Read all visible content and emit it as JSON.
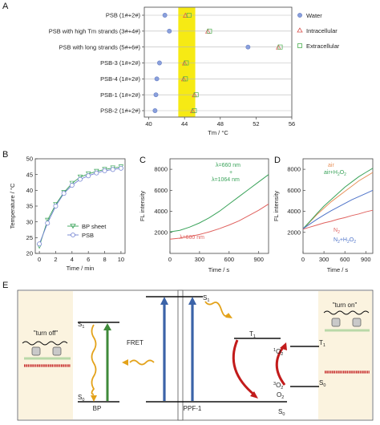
{
  "panels": {
    "a": "A",
    "b": "B",
    "c": "C",
    "d": "D",
    "e": "E"
  },
  "chart_data": [
    {
      "id": "A",
      "type": "scatter",
      "xlabel": "Tm / °C",
      "xlim": [
        39.5,
        56
      ],
      "xticks": [
        40,
        44,
        48,
        52,
        56
      ],
      "highlight_band": [
        43.3,
        45.2
      ],
      "categories": [
        "PSB (1#+2#)",
        "PSB with high Tm strands (3#+4#)",
        "PSB with long strands (5#+6#)",
        "PSB-3 (1#+2#)",
        "PSB-4 (1#+2#)",
        "PSB-1 (1#+2#)",
        "PSB-2 (1#+2#)"
      ],
      "series": [
        {
          "name": "Water",
          "marker": "circle",
          "color": "#6f86c9",
          "values": [
            41.8,
            42.3,
            51.1,
            41.2,
            40.9,
            40.8,
            40.7
          ]
        },
        {
          "name": "Intracellular",
          "marker": "triangle",
          "color": "#d9534f",
          "values": [
            44.1,
            46.6,
            54.5,
            44.0,
            43.9,
            45.1,
            44.9
          ]
        },
        {
          "name": "Extracellular",
          "marker": "square",
          "color": "#4caf50",
          "values": [
            44.5,
            46.8,
            54.7,
            44.2,
            44.1,
            45.3,
            45.1
          ]
        }
      ]
    },
    {
      "id": "B",
      "type": "line",
      "xlabel": "Time / min",
      "ylabel": "Temperature / °C",
      "xlim": [
        -0.5,
        10.5
      ],
      "ylim": [
        20,
        50
      ],
      "xticks": [
        0,
        2,
        4,
        6,
        8,
        10
      ],
      "yticks": [
        20,
        25,
        30,
        35,
        40,
        45,
        50
      ],
      "x": [
        0,
        1,
        2,
        3,
        4,
        5,
        6,
        7,
        8,
        9,
        10
      ],
      "series": [
        {
          "name": "BP sheet",
          "marker": "triangle-down",
          "color": "#3aa35a",
          "values": [
            22.3,
            30.5,
            35.5,
            39.3,
            42.2,
            44.2,
            45.2,
            46.0,
            46.6,
            47.1,
            47.4
          ]
        },
        {
          "name": "PSB",
          "marker": "circle",
          "color": "#6f7fd1",
          "values": [
            23.0,
            29.6,
            35.0,
            39.0,
            41.6,
            43.5,
            44.6,
            45.5,
            46.2,
            46.6,
            47.0
          ]
        }
      ],
      "legend": "bottom-right"
    },
    {
      "id": "C",
      "type": "line",
      "xlabel": "Time / s",
      "ylabel": "FL intensity",
      "xlim": [
        0,
        1000
      ],
      "ylim": [
        0,
        9000
      ],
      "xticks": [
        0,
        300,
        600,
        900
      ],
      "yticks": [
        2000,
        4000,
        6000,
        8000
      ],
      "x": [
        0,
        100,
        200,
        300,
        400,
        500,
        600,
        700,
        800,
        900,
        1000
      ],
      "series": [
        {
          "name": "λ=660 nm",
          "color": "#e0625f",
          "values": [
            1350,
            1450,
            1600,
            1800,
            2050,
            2350,
            2700,
            3100,
            3600,
            4100,
            4700
          ]
        },
        {
          "name": "λ=660 nm + λ=1064 nm",
          "color": "#3aa35a",
          "values": [
            2050,
            2200,
            2500,
            2900,
            3400,
            4000,
            4700,
            5400,
            6100,
            6800,
            7500
          ]
        }
      ],
      "annotations": {
        "green_line1": "λ=660 nm",
        "green_plus": "+",
        "green_line2": "λ=1064 nm",
        "red": "λ=660 nm"
      }
    },
    {
      "id": "D",
      "type": "line",
      "xlabel": "Time / s",
      "ylabel": "FL intensity",
      "xlim": [
        0,
        1000
      ],
      "ylim": [
        0,
        9000
      ],
      "xticks": [
        0,
        300,
        600,
        900
      ],
      "yticks": [
        2000,
        4000,
        6000,
        8000
      ],
      "x": [
        0,
        100,
        200,
        300,
        400,
        500,
        600,
        700,
        800,
        900,
        1000
      ],
      "series": [
        {
          "name": "air",
          "color": "#e8925c",
          "values": [
            2300,
            3000,
            3700,
            4300,
            4900,
            5400,
            5900,
            6400,
            6900,
            7300,
            7700
          ]
        },
        {
          "name": "air+H2O2",
          "color": "#3aa35a",
          "values": [
            2350,
            3050,
            3800,
            4500,
            5100,
            5700,
            6300,
            6800,
            7300,
            7700,
            8100
          ]
        },
        {
          "name": "N2",
          "color": "#e0625f",
          "values": [
            2300,
            2500,
            2700,
            2900,
            3050,
            3250,
            3400,
            3600,
            3750,
            3950,
            4100
          ]
        },
        {
          "name": "N2+H2O2",
          "color": "#4f74c9",
          "values": [
            2350,
            2800,
            3250,
            3650,
            4050,
            4400,
            4750,
            5100,
            5400,
            5700,
            6000
          ]
        }
      ],
      "legend_labels": {
        "air": "air",
        "air_h2o2_main": "air+H",
        "air_h2o2_sub": "2",
        "air_h2o2_end": "O",
        "air_h2o2_sub2": "2",
        "n2_main": "N",
        "n2_sub": "2",
        "n2h_main": "N",
        "n2h_sub": "2",
        "n2h_mid": "+H",
        "n2h_sub2": "2",
        "n2h_end": "O",
        "n2h_sub3": "2"
      }
    }
  ],
  "diagram": {
    "turn_off": "\"turn off\"",
    "turn_on": "\"turn on\"",
    "fret": "FRET",
    "s1_left": "S",
    "s1_left_sub": "1",
    "s0_left": "S",
    "s0_left_sub": "0",
    "bp": "BP",
    "ppf": "PPF-1",
    "s1_mid": "S",
    "s1_mid_sub": "1",
    "t1_mid": "T",
    "t1_mid_sub": "1",
    "s0_mid": "S",
    "s0_mid_sub": "0",
    "o2_singlet": "O",
    "o2_singlet_pre": "1",
    "o2_singlet_sub": "2",
    "o2_triplet": "O",
    "o2_triplet_pre": "3",
    "o2_triplet_sub": "2",
    "o2": "O",
    "o2_sub": "2",
    "t1_right": "T",
    "t1_right_sub": "1",
    "s0_right": "S",
    "s0_right_sub": "0"
  }
}
